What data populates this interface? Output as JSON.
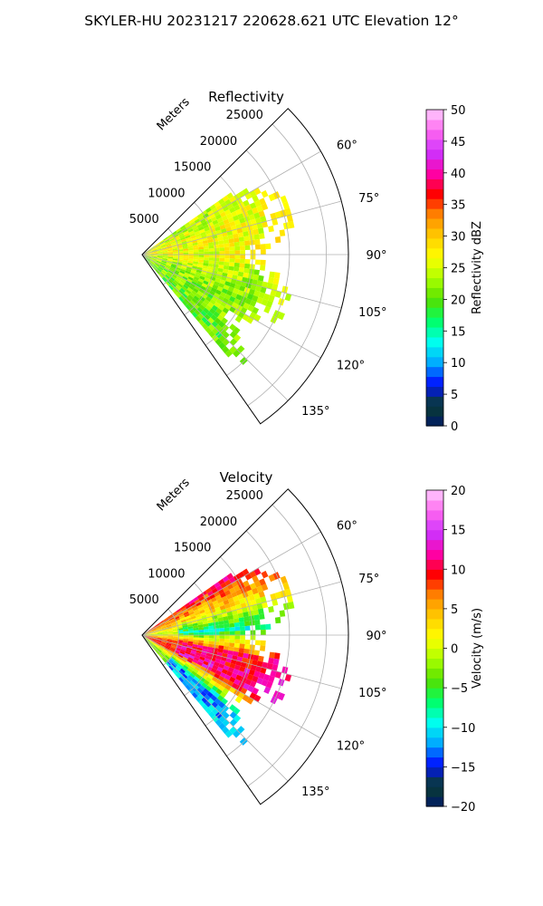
{
  "figure": {
    "suptitle": "SKYLER-HU  20231217  220628.621 UTC Elevation 12°"
  },
  "chart_data": [
    {
      "type": "heatmap",
      "projection": "polar-sector",
      "title": "Reflectivity",
      "range_label": "Meters",
      "range_ticks": [
        5000,
        10000,
        15000,
        20000,
        25000
      ],
      "range_tick_labels": [
        "5000",
        "10000",
        "15000",
        "20000",
        "25000"
      ],
      "range_max": 28000,
      "azimuth_min_deg": 45,
      "azimuth_max_deg": 145,
      "azimuth_ticks_deg": [
        60,
        75,
        90,
        105,
        120,
        135
      ],
      "azimuth_tick_labels": [
        "60°",
        "75°",
        "90°",
        "105°",
        "120°",
        "135°"
      ],
      "grid": true,
      "data_extent": {
        "azimuth_deg": [
          55,
          140
        ],
        "range_m": [
          0,
          21000
        ]
      },
      "colorbar": {
        "label": "Reflectivity dBZ",
        "range": [
          0,
          50
        ],
        "ticks": [
          0,
          5,
          10,
          15,
          20,
          25,
          30,
          35,
          40,
          45,
          50
        ],
        "tick_labels": [
          "0",
          "5",
          "10",
          "15",
          "20",
          "25",
          "30",
          "35",
          "40",
          "45",
          "50"
        ],
        "colormap": [
          "#001a66",
          "#0a3d2e",
          "#0011ff",
          "#00aaff",
          "#00ffee",
          "#00ff66",
          "#55e000",
          "#aaff00",
          "#ffff00",
          "#ffcc00",
          "#ff8800",
          "#ff0000",
          "#ff00aa",
          "#cc33ff",
          "#ff66ee",
          "#ffccff"
        ]
      },
      "field_profile": {
        "azimuth_deg": [
          55,
          70,
          85,
          100,
          115,
          130,
          140
        ],
        "mean_by_azimuth": [
          24,
          26,
          27,
          24,
          22,
          21,
          20
        ]
      }
    },
    {
      "type": "heatmap",
      "projection": "polar-sector",
      "title": "Velocity",
      "range_label": "Meters",
      "range_ticks": [
        5000,
        10000,
        15000,
        20000,
        25000
      ],
      "range_tick_labels": [
        "5000",
        "10000",
        "15000",
        "20000",
        "25000"
      ],
      "range_max": 28000,
      "azimuth_min_deg": 45,
      "azimuth_max_deg": 145,
      "azimuth_ticks_deg": [
        60,
        75,
        90,
        105,
        120,
        135
      ],
      "azimuth_tick_labels": [
        "60°",
        "75°",
        "90°",
        "105°",
        "120°",
        "135°"
      ],
      "grid": true,
      "data_extent": {
        "azimuth_deg": [
          55,
          140
        ],
        "range_m": [
          0,
          21000
        ]
      },
      "colorbar": {
        "label": "Velocity (m/s)",
        "range": [
          -20,
          20
        ],
        "ticks": [
          -20,
          -15,
          -10,
          -5,
          0,
          5,
          10,
          15,
          20
        ],
        "tick_labels": [
          "−20",
          "−15",
          "−10",
          "−5",
          "0",
          "5",
          "10",
          "15",
          "20"
        ],
        "colormap": [
          "#001a66",
          "#0a3d2e",
          "#0011ff",
          "#00aaff",
          "#00ffee",
          "#00ff66",
          "#55e000",
          "#aaff00",
          "#ffff00",
          "#ffcc00",
          "#ff8800",
          "#ff0000",
          "#ff00aa",
          "#cc33ff",
          "#ff66ee",
          "#ffccff"
        ]
      },
      "field_profile": {
        "azimuth_deg": [
          55,
          70,
          85,
          100,
          115,
          130,
          140
        ],
        "mean_by_azimuth": [
          10,
          3,
          -8,
          10,
          12,
          -12,
          -11
        ]
      }
    }
  ]
}
